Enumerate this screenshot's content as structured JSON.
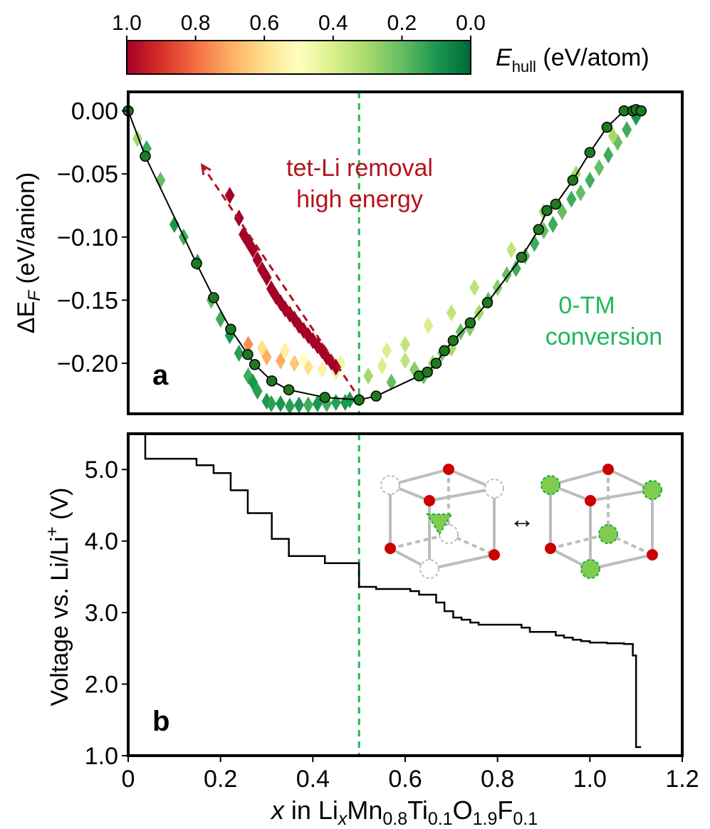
{
  "colorbar": {
    "ticks": [
      "1.0",
      "0.8",
      "0.6",
      "0.4",
      "0.2",
      "0.0"
    ],
    "label_main": "E",
    "label_sub": "hull",
    "label_unit": " (eV/atom)",
    "colors": [
      "#a50026",
      "#d73027",
      "#f46d43",
      "#fdae61",
      "#fee08b",
      "#ffffbf",
      "#d9ef8b",
      "#a6d96a",
      "#66bd63",
      "#1a9850",
      "#006837"
    ]
  },
  "chart_data": [
    {
      "type": "scatter",
      "panel_label": "a",
      "ylabel_prefix": "ΔE",
      "ylabel_sub": "F",
      "ylabel_suffix": " (eV/anion)",
      "xlim": [
        0,
        1.2
      ],
      "ylim": [
        -0.24,
        0.015
      ],
      "yticks": [
        0.0,
        -0.05,
        -0.1,
        -0.15,
        -0.2
      ],
      "ytick_labels": [
        "0.00",
        "−0.05",
        "−0.10",
        "−0.15",
        "−0.20"
      ],
      "vline_x": 0.5,
      "annotations": {
        "tet_li_line1": "tet-Li removal",
        "tet_li_line2": "high energy",
        "tm_line1": "0-TM",
        "tm_line2": "conversion"
      },
      "hull": {
        "x": [
          0.0,
          0.037,
          0.148,
          0.185,
          0.222,
          0.259,
          0.274,
          0.311,
          0.348,
          0.426,
          0.5,
          0.537,
          0.63,
          0.648,
          0.667,
          0.685,
          0.704,
          0.741,
          0.778,
          0.852,
          0.889,
          0.907,
          0.926,
          0.963,
          1.0,
          1.037,
          1.074,
          1.093,
          1.1,
          1.111
        ],
        "y": [
          0.0,
          -0.036,
          -0.121,
          -0.148,
          -0.173,
          -0.193,
          -0.201,
          -0.214,
          -0.221,
          -0.227,
          -0.229,
          -0.226,
          -0.21,
          -0.207,
          -0.2,
          -0.19,
          -0.182,
          -0.168,
          -0.152,
          -0.116,
          -0.094,
          -0.079,
          -0.074,
          -0.055,
          -0.033,
          -0.013,
          0.0,
          0.0,
          0.001,
          0.0
        ]
      },
      "structures": {
        "x": [
          0.02,
          0.04,
          0.07,
          0.1,
          0.12,
          0.15,
          0.18,
          0.2,
          0.22,
          0.24,
          0.26,
          0.27,
          0.28,
          0.3,
          0.31,
          0.33,
          0.35,
          0.37,
          0.39,
          0.41,
          0.43,
          0.45,
          0.47,
          0.48,
          0.3,
          0.33,
          0.36,
          0.39,
          0.42,
          0.45,
          0.26,
          0.29,
          0.34,
          0.38,
          0.46,
          0.52,
          0.55,
          0.57,
          0.6,
          0.62,
          0.64,
          0.66,
          0.68,
          0.7,
          0.72,
          0.74,
          0.76,
          0.78,
          0.8,
          0.82,
          0.84,
          0.86,
          0.88,
          0.9,
          0.92,
          0.94,
          0.96,
          0.98,
          1.0,
          1.02,
          1.04,
          1.06,
          1.08,
          1.1,
          0.56,
          0.6,
          0.65,
          0.7,
          0.75,
          0.83,
          0.9,
          0.97,
          1.05
        ],
        "y": [
          -0.022,
          -0.03,
          -0.055,
          -0.09,
          -0.1,
          -0.12,
          -0.15,
          -0.165,
          -0.178,
          -0.192,
          -0.21,
          -0.215,
          -0.222,
          -0.23,
          -0.232,
          -0.232,
          -0.234,
          -0.233,
          -0.233,
          -0.232,
          -0.232,
          -0.231,
          -0.231,
          -0.229,
          -0.195,
          -0.198,
          -0.2,
          -0.203,
          -0.205,
          -0.207,
          -0.185,
          -0.188,
          -0.19,
          -0.197,
          -0.2,
          -0.21,
          -0.202,
          -0.215,
          -0.198,
          -0.205,
          -0.21,
          -0.2,
          -0.192,
          -0.188,
          -0.175,
          -0.172,
          -0.16,
          -0.15,
          -0.14,
          -0.13,
          -0.125,
          -0.115,
          -0.105,
          -0.095,
          -0.09,
          -0.08,
          -0.07,
          -0.065,
          -0.055,
          -0.045,
          -0.035,
          -0.025,
          -0.015,
          -0.005,
          -0.19,
          -0.185,
          -0.17,
          -0.16,
          -0.14,
          -0.11,
          -0.08,
          -0.05,
          -0.02
        ],
        "ehull": [
          0.3,
          0.15,
          0.2,
          0.1,
          0.15,
          0.1,
          0.2,
          0.15,
          0.1,
          0.12,
          0.15,
          0.1,
          0.12,
          0.1,
          0.12,
          0.1,
          0.12,
          0.1,
          0.15,
          0.1,
          0.15,
          0.12,
          0.1,
          0.1,
          0.7,
          0.7,
          0.65,
          0.6,
          0.55,
          0.45,
          0.75,
          0.6,
          0.55,
          0.5,
          0.45,
          0.3,
          0.4,
          0.2,
          0.35,
          0.25,
          0.2,
          0.3,
          0.25,
          0.3,
          0.2,
          0.25,
          0.3,
          0.2,
          0.25,
          0.2,
          0.15,
          0.2,
          0.15,
          0.2,
          0.15,
          0.2,
          0.15,
          0.2,
          0.15,
          0.2,
          0.15,
          0.2,
          0.15,
          0.1,
          0.4,
          0.35,
          0.4,
          0.35,
          0.35,
          0.35,
          0.3,
          0.3,
          0.3
        ]
      },
      "tet_li_removal": {
        "x": [
          0.22,
          0.24,
          0.25,
          0.26,
          0.27,
          0.28,
          0.29,
          0.3,
          0.31,
          0.32,
          0.33,
          0.34,
          0.35,
          0.36,
          0.37,
          0.38,
          0.39,
          0.4,
          0.41,
          0.42,
          0.43,
          0.44,
          0.45
        ],
        "y": [
          -0.067,
          -0.085,
          -0.098,
          -0.104,
          -0.11,
          -0.118,
          -0.126,
          -0.132,
          -0.141,
          -0.147,
          -0.152,
          -0.157,
          -0.161,
          -0.165,
          -0.17,
          -0.174,
          -0.178,
          -0.182,
          -0.186,
          -0.19,
          -0.195,
          -0.199,
          -0.203
        ],
        "ehull": [
          1.0,
          1.0,
          1.0,
          1.0,
          1.0,
          1.0,
          1.0,
          1.0,
          1.0,
          1.0,
          1.0,
          1.0,
          1.0,
          1.0,
          1.0,
          1.0,
          1.0,
          1.0,
          1.0,
          1.0,
          1.0,
          1.0,
          1.0
        ]
      },
      "arrow": {
        "x1": 0.49,
        "y1": -0.222,
        "x2": 0.16,
        "y2": -0.043
      }
    },
    {
      "type": "line",
      "panel_label": "b",
      "ylabel_part1": "Voltage vs. Li/Li",
      "ylabel_sup": "+",
      "ylabel_part2": "  (V)",
      "xlim": [
        0,
        1.2
      ],
      "ylim": [
        1.0,
        5.5
      ],
      "yticks": [
        1.0,
        2.0,
        3.0,
        4.0,
        5.0
      ],
      "ytick_labels": [
        "1.0",
        "2.0",
        "3.0",
        "4.0",
        "5.0"
      ],
      "xticks": [
        0,
        0.2,
        0.4,
        0.6,
        0.8,
        1.0,
        1.2
      ],
      "xtick_labels": [
        "0",
        "0.2",
        "0.4",
        "0.6",
        "0.8",
        "1.0",
        "1.2"
      ],
      "vline_x": 0.5,
      "steps": [
        {
          "x0": 0.037,
          "x1": 0.148,
          "v": 5.15
        },
        {
          "x0": 0.148,
          "x1": 0.185,
          "v": 5.06
        },
        {
          "x0": 0.185,
          "x1": 0.222,
          "v": 4.95
        },
        {
          "x0": 0.222,
          "x1": 0.259,
          "v": 4.71
        },
        {
          "x0": 0.259,
          "x1": 0.311,
          "v": 4.39
        },
        {
          "x0": 0.311,
          "x1": 0.348,
          "v": 4.03
        },
        {
          "x0": 0.348,
          "x1": 0.426,
          "v": 3.79
        },
        {
          "x0": 0.426,
          "x1": 0.5,
          "v": 3.69
        },
        {
          "x0": 0.5,
          "x1": 0.537,
          "v": 3.36
        },
        {
          "x0": 0.537,
          "x1": 0.611,
          "v": 3.33
        },
        {
          "x0": 0.611,
          "x1": 0.63,
          "v": 3.3
        },
        {
          "x0": 0.63,
          "x1": 0.667,
          "v": 3.25
        },
        {
          "x0": 0.667,
          "x1": 0.685,
          "v": 3.14
        },
        {
          "x0": 0.685,
          "x1": 0.704,
          "v": 3.02
        },
        {
          "x0": 0.704,
          "x1": 0.722,
          "v": 2.93
        },
        {
          "x0": 0.722,
          "x1": 0.741,
          "v": 2.9
        },
        {
          "x0": 0.741,
          "x1": 0.759,
          "v": 2.86
        },
        {
          "x0": 0.759,
          "x1": 0.852,
          "v": 2.83
        },
        {
          "x0": 0.852,
          "x1": 0.87,
          "v": 2.79
        },
        {
          "x0": 0.87,
          "x1": 0.926,
          "v": 2.73
        },
        {
          "x0": 0.926,
          "x1": 0.944,
          "v": 2.68
        },
        {
          "x0": 0.944,
          "x1": 0.963,
          "v": 2.65
        },
        {
          "x0": 0.963,
          "x1": 0.981,
          "v": 2.62
        },
        {
          "x0": 0.981,
          "x1": 1.0,
          "v": 2.6
        },
        {
          "x0": 1.0,
          "x1": 1.037,
          "v": 2.58
        },
        {
          "x0": 1.037,
          "x1": 1.074,
          "v": 2.57
        },
        {
          "x0": 1.074,
          "x1": 1.093,
          "v": 2.56
        },
        {
          "x0": 1.093,
          "x1": 1.1,
          "v": 2.4
        },
        {
          "x0": 1.1,
          "x1": 1.111,
          "v": 1.12
        }
      ],
      "xlabel_var": "x",
      "xlabel_in": " in Li",
      "xlabel_parts": [
        {
          "base": "Li",
          "sub": "x"
        },
        {
          "base": "Mn",
          "sub": "0.8"
        },
        {
          "base": "Ti",
          "sub": "0.1"
        },
        {
          "base": "O",
          "sub": "1.9"
        },
        {
          "base": "F",
          "sub": "0.1"
        }
      ],
      "xlabel_sub_x": "x",
      "xlabel_mn": "Mn",
      "xlabel_mn_sub": "0.8",
      "xlabel_ti": "Ti",
      "xlabel_ti_sub": "0.1",
      "xlabel_o": "O",
      "xlabel_o_sub": "1.9",
      "xlabel_f": "F",
      "xlabel_f_sub": "0.1"
    }
  ],
  "inset": {
    "arrow_glyph": "↔",
    "red": "#cc0000",
    "green": "#80cc50",
    "green_edge": "#1aaa3a"
  }
}
